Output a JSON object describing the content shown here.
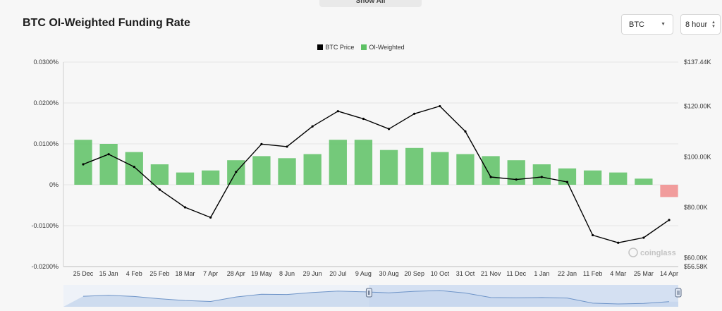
{
  "top_button": {
    "label": "Show All"
  },
  "title": "BTC OI-Weighted Funding Rate",
  "controls": {
    "asset_select": {
      "value": "BTC",
      "icon": "caret-down-icon"
    },
    "interval_select": {
      "value": "8 hour",
      "icon": "up-down-arrows-icon"
    }
  },
  "watermark": {
    "text": "coinglass",
    "icon": "coinglass-logo-icon"
  },
  "colors": {
    "price": "#000000",
    "positive": "#5dc164",
    "negative": "#f08c8c",
    "navigator_fill": "#c6d6ec",
    "navigator_line": "#6e94c8",
    "navigator_window": "#d4e0f2"
  },
  "chart_data": {
    "type": "bar",
    "title": "BTC OI-Weighted Funding Rate",
    "legend": {
      "placement": "top-center",
      "entries": [
        {
          "name": "BTC Price",
          "color": "#000000"
        },
        {
          "name": "OI-Weighted",
          "color": "#5dc164"
        }
      ]
    },
    "left_axis": {
      "ticks": [
        "0.0300%",
        "0.0200%",
        "0.0100%",
        "0%",
        "-0.0100%",
        "-0.0200%"
      ],
      "values": [
        0.03,
        0.02,
        0.01,
        0,
        -0.01,
        -0.02
      ],
      "ylim": [
        -0.02,
        0.03
      ],
      "unit": "%"
    },
    "right_axis": {
      "ticks": [
        "$137.44K",
        "$120.00K",
        "$100.00K",
        "$80.00K",
        "$60.00K",
        "$56.58K"
      ],
      "values": [
        137.44,
        120,
        100,
        80,
        60,
        56.58
      ],
      "ylim": [
        56.58,
        137.44
      ],
      "unit": "K USD"
    },
    "x_tick_labels": [
      "25 Dec",
      "15 Jan",
      "4 Feb",
      "25 Feb",
      "18 Mar",
      "7 Apr",
      "28 Apr",
      "19 May",
      "8 Jun",
      "29 Jun",
      "20 Jul",
      "9 Aug",
      "30 Aug",
      "20 Sep",
      "10 Oct",
      "31 Oct",
      "21 Nov",
      "11 Dec",
      "1 Jan",
      "22 Jan",
      "11 Feb",
      "4 Mar",
      "25 Mar",
      "14 Apr"
    ],
    "series": [
      {
        "name": "BTC Price",
        "axis": "right",
        "type": "line",
        "x": [
          "25 Dec",
          "15 Jan",
          "4 Feb",
          "25 Feb",
          "18 Mar",
          "7 Apr",
          "28 Apr",
          "19 May",
          "8 Jun",
          "29 Jun",
          "20 Jul",
          "9 Aug",
          "30 Aug",
          "20 Sep",
          "10 Oct",
          "31 Oct",
          "21 Nov",
          "11 Dec",
          "1 Jan",
          "22 Jan",
          "11 Feb",
          "4 Mar",
          "25 Mar",
          "14 Apr"
        ],
        "values": [
          97,
          101,
          96,
          87,
          80,
          76,
          94,
          105,
          104,
          112,
          118,
          115,
          111,
          117,
          120,
          110,
          92,
          91,
          92,
          90,
          69,
          66,
          68,
          75
        ]
      },
      {
        "name": "OI-Weighted",
        "axis": "left",
        "type": "bar",
        "x": [
          "25 Dec",
          "15 Jan",
          "4 Feb",
          "25 Feb",
          "18 Mar",
          "7 Apr",
          "28 Apr",
          "19 May",
          "8 Jun",
          "29 Jun",
          "20 Jul",
          "9 Aug",
          "30 Aug",
          "20 Sep",
          "10 Oct",
          "31 Oct",
          "21 Nov",
          "11 Dec",
          "1 Jan",
          "22 Jan",
          "11 Feb",
          "4 Mar",
          "25 Mar",
          "14 Apr"
        ],
        "values": [
          0.011,
          0.01,
          0.008,
          0.005,
          0.003,
          0.0035,
          0.006,
          0.007,
          0.0065,
          0.0075,
          0.011,
          0.011,
          0.0085,
          0.009,
          0.008,
          0.0075,
          0.007,
          0.006,
          0.005,
          0.004,
          0.0035,
          0.003,
          0.0015,
          -0.003
        ]
      }
    ],
    "grid": true,
    "navigator": {
      "selected_range": [
        "9 Aug",
        "14 Apr"
      ]
    }
  }
}
